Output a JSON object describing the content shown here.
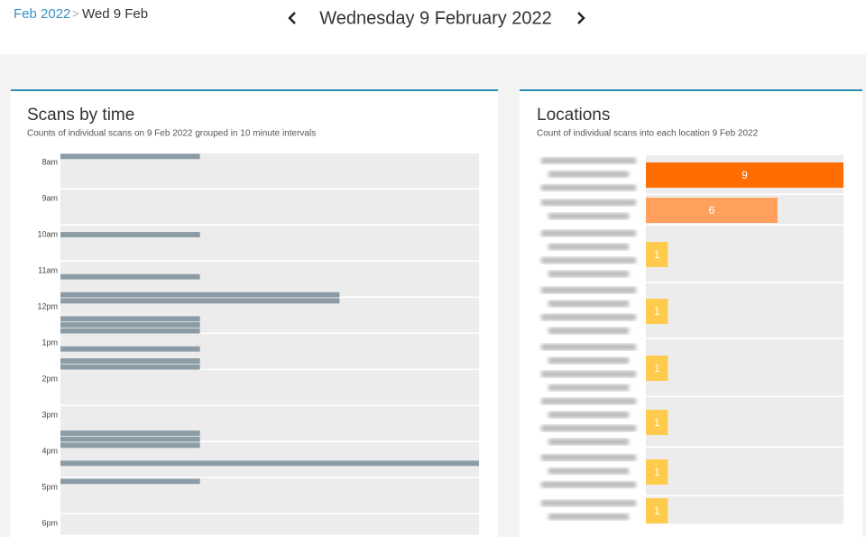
{
  "breadcrumb": {
    "parent": "Feb 2022",
    "separator": ">",
    "current": "Wed 9 Feb"
  },
  "header": {
    "title": "Wednesday 9 February 2022"
  },
  "chart_data": [
    {
      "type": "bar",
      "orientation": "horizontal",
      "title": "Scans by time",
      "subtitle": "Counts of individual scans on 9 Feb 2022 grouped in 10 minute intervals",
      "y": [
        480,
        610,
        680,
        710,
        720,
        750,
        760,
        770,
        800,
        820,
        830,
        940,
        950,
        960,
        990,
        1020
      ],
      "values": [
        1,
        1,
        1,
        2,
        2,
        1,
        1,
        1,
        1,
        1,
        1,
        1,
        1,
        1,
        3,
        1
      ],
      "color": "#8c9ca6",
      "xlim": [
        0,
        3
      ],
      "ylim": [
        480,
        1116
      ],
      "yticks": [
        {
          "value": 480,
          "label": "8am"
        },
        {
          "value": 540,
          "label": "9am"
        },
        {
          "value": 600,
          "label": "10am"
        },
        {
          "value": 660,
          "label": "11am"
        },
        {
          "value": 720,
          "label": "12pm"
        },
        {
          "value": 780,
          "label": "1pm"
        },
        {
          "value": 840,
          "label": "2pm"
        },
        {
          "value": 900,
          "label": "3pm"
        },
        {
          "value": 960,
          "label": "4pm"
        },
        {
          "value": 1020,
          "label": "5pm"
        },
        {
          "value": 1080,
          "label": "6pm"
        }
      ],
      "grid": true
    },
    {
      "type": "bar",
      "orientation": "horizontal",
      "title": "Locations",
      "subtitle": "Count of individual scans into each location 9 Feb 2022",
      "categories": [
        null,
        null,
        null,
        null,
        null,
        null,
        null,
        null
      ],
      "values": [
        9,
        6,
        1,
        1,
        1,
        1,
        1,
        1
      ],
      "colors": [
        "#ff6d00",
        "#ffa05c",
        "#ffcb4c",
        "#ffcb4c",
        "#ffcb4c",
        "#ffcb4c",
        "#ffcb4c",
        "#ffcb4c"
      ],
      "xlim": [
        0,
        9
      ]
    }
  ]
}
